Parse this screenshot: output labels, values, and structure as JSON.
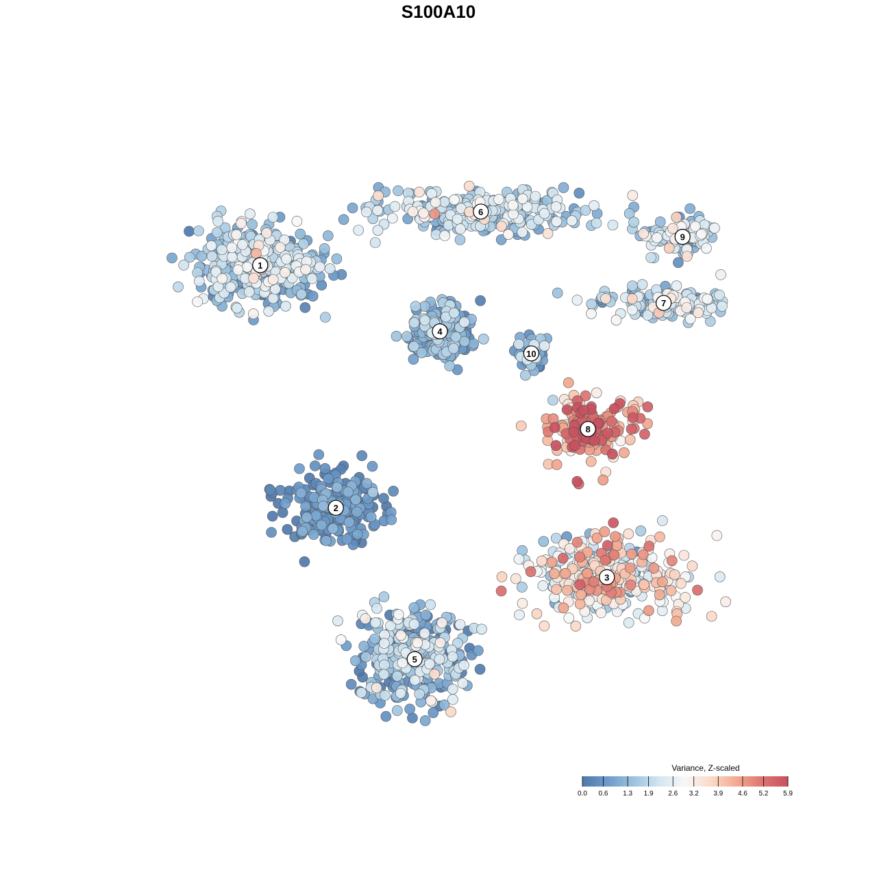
{
  "chart_data": {
    "type": "scatter",
    "title": "S100A10",
    "xlabel": "",
    "ylabel": "",
    "grid": false,
    "legend_placement": "bottom-right",
    "colorbar": {
      "title": "Variance, Z-scaled",
      "min": 0.0,
      "max": 5.9,
      "ticks": [
        "0.0",
        "0.6",
        "1.3",
        "1.9",
        "2.6",
        "3.2",
        "3.9",
        "4.6",
        "5.2",
        "5.9"
      ],
      "colors": [
        "#4f79ab",
        "#6d9ccb",
        "#9dc3df",
        "#d3e6f1",
        "#f7f7f7",
        "#fbd9c8",
        "#f3aa90",
        "#dd7470",
        "#c8505f"
      ]
    },
    "cluster_labels": [
      "1",
      "2",
      "3",
      "4",
      "5",
      "6",
      "7",
      "8",
      "9",
      "10"
    ],
    "clusters": [
      {
        "label": "1",
        "cx": -0.62,
        "cy": 0.55,
        "mean_value": 1.5
      },
      {
        "label": "6",
        "cx": 0.08,
        "cy": 0.72,
        "mean_value": 1.7
      },
      {
        "label": "9",
        "cx": 0.72,
        "cy": 0.64,
        "mean_value": 1.9
      },
      {
        "label": "7",
        "cx": 0.66,
        "cy": 0.43,
        "mean_value": 1.8
      },
      {
        "label": "4",
        "cx": -0.05,
        "cy": 0.34,
        "mean_value": 0.9
      },
      {
        "label": "10",
        "cx": 0.24,
        "cy": 0.27,
        "mean_value": 1.0
      },
      {
        "label": "8",
        "cx": 0.42,
        "cy": 0.03,
        "mean_value": 4.6
      },
      {
        "label": "2",
        "cx": -0.38,
        "cy": -0.22,
        "mean_value": 0.4
      },
      {
        "label": "3",
        "cx": 0.48,
        "cy": -0.44,
        "mean_value": 3.1
      },
      {
        "label": "5",
        "cx": -0.13,
        "cy": -0.7,
        "mean_value": 1.2
      }
    ]
  }
}
